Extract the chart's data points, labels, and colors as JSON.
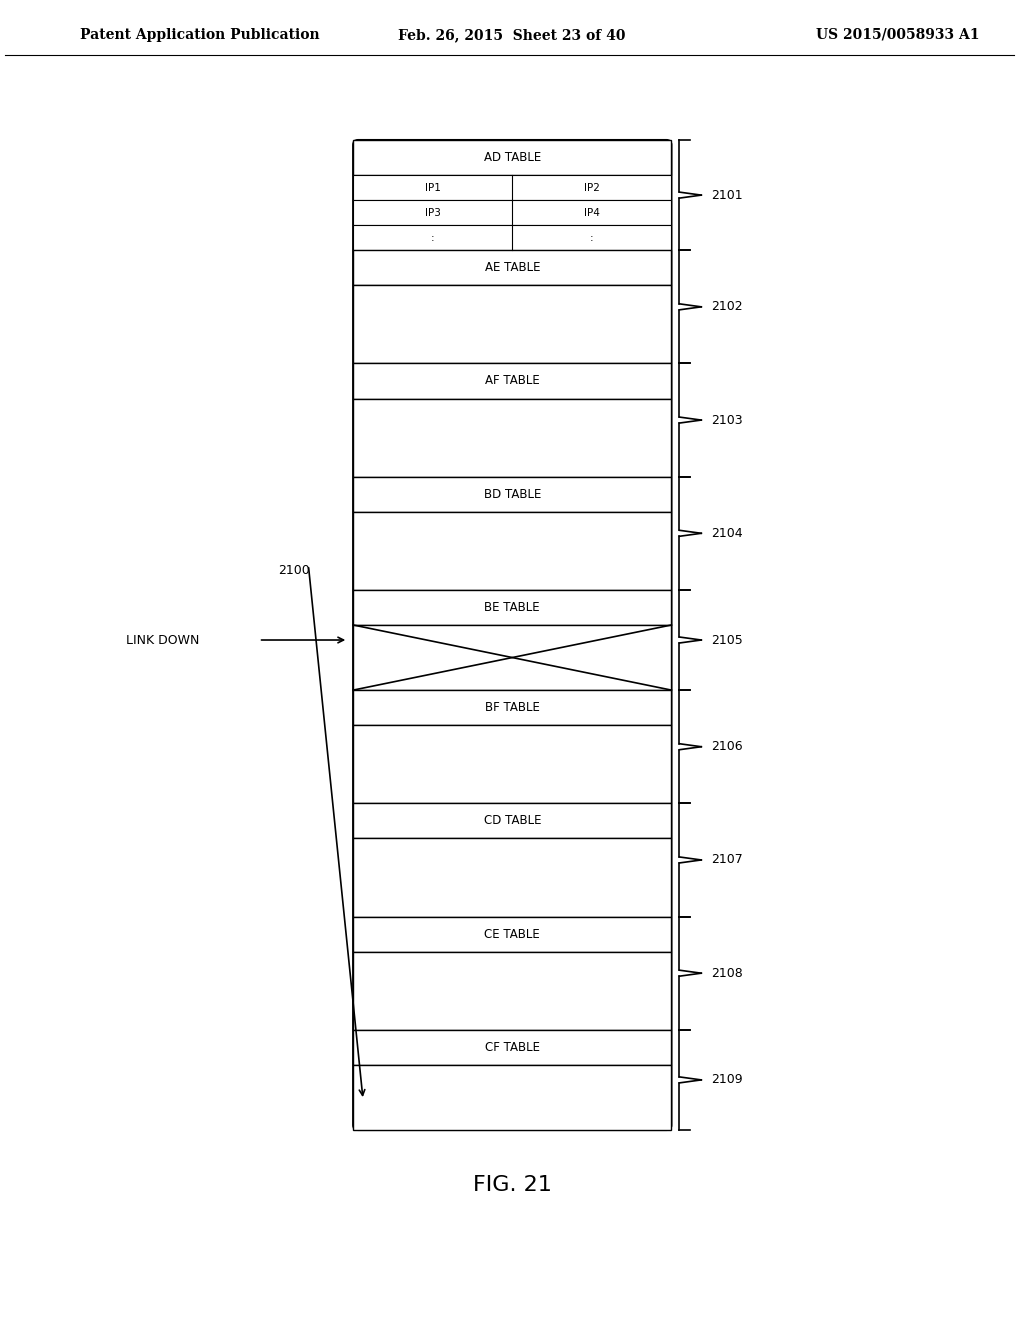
{
  "header_left": "Patent Application Publication",
  "header_mid": "Feb. 26, 2015  Sheet 23 of 40",
  "header_right": "US 2015/0058933 A1",
  "fig_label": "FIG. 21",
  "diagram_label": "2100",
  "link_down_label": "LINK DOWN",
  "sections": [
    {
      "label": "AD TABLE",
      "has_subtable": true,
      "rows": [
        "IP1|IP2",
        "IP3|IP4",
        ":|:"
      ],
      "id": "2101"
    },
    {
      "label": "AE TABLE",
      "has_subtable": false,
      "id": "2102"
    },
    {
      "label": "AF TABLE",
      "has_subtable": false,
      "id": "2103"
    },
    {
      "label": "BD TABLE",
      "has_subtable": false,
      "id": "2104"
    },
    {
      "label": "BE TABLE",
      "has_subtable": false,
      "has_x": true,
      "id": "2105"
    },
    {
      "label": "BF TABLE",
      "has_subtable": false,
      "id": "2106"
    },
    {
      "label": "CD TABLE",
      "has_subtable": false,
      "id": "2107"
    },
    {
      "label": "CE TABLE",
      "has_subtable": false,
      "id": "2108"
    },
    {
      "label": "CF TABLE",
      "has_subtable": false,
      "id": "2109"
    }
  ],
  "bg_color": "#ffffff",
  "line_color": "#000000",
  "text_color": "#000000",
  "font_size_header": 10,
  "font_size_label": 9,
  "font_size_section": 8.5,
  "font_size_fig": 16
}
